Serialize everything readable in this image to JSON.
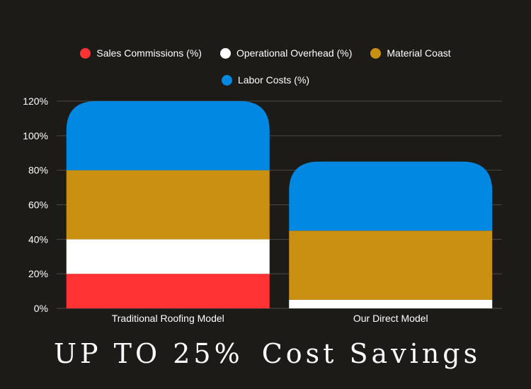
{
  "chart_data": {
    "type": "bar",
    "stacked": true,
    "categories": [
      "Traditional Roofing Model",
      "Our Direct Model"
    ],
    "series": [
      {
        "name": "Sales Commissions (%)",
        "color": "#ff3333",
        "values": [
          20,
          0
        ]
      },
      {
        "name": "Operational Overhead (%)",
        "color": "#ffffff",
        "values": [
          20,
          5
        ]
      },
      {
        "name": "Material Coast",
        "color": "#c99012",
        "values": [
          40,
          40
        ]
      },
      {
        "name": "Labor Costs (%)",
        "color": "#0088e2",
        "values": [
          40,
          40
        ]
      }
    ],
    "ylim": [
      0,
      120
    ],
    "yticks": [
      "0%",
      "20%",
      "40%",
      "60%",
      "80%",
      "100%",
      "120%"
    ],
    "grid": true,
    "legend_position": "top-center"
  },
  "footer": {
    "headline_part1": "UP TO 25%",
    "headline_part2": "Cost Savings"
  }
}
